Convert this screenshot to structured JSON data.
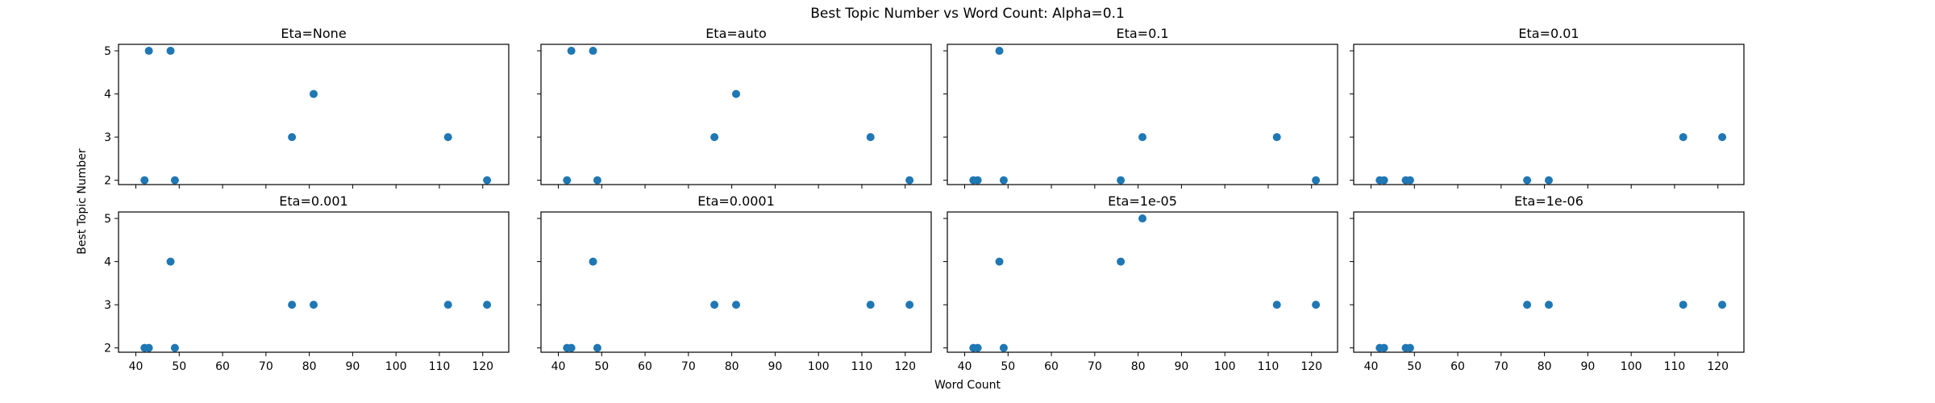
{
  "figure": {
    "title": "Best Topic Number vs Word Count: Alpha=0.1",
    "xlabel": "Word Count",
    "ylabel": "Best Topic Number",
    "marker_color": "#1f77b4"
  },
  "chart_data": {
    "type": "scatter",
    "shared_x": true,
    "shared_y": true,
    "xlim": [
      36,
      126
    ],
    "ylim": [
      1.9,
      5.15
    ],
    "xticks": [
      "40",
      "50",
      "60",
      "70",
      "80",
      "90",
      "100",
      "110",
      "120"
    ],
    "yticks": [
      "2",
      "3",
      "4",
      "5"
    ],
    "panels": [
      {
        "title": "Eta=None",
        "x": [
          42,
          43,
          48,
          49,
          76,
          81,
          112,
          121
        ],
        "y": [
          2,
          5,
          5,
          2,
          3,
          4,
          3,
          2
        ]
      },
      {
        "title": "Eta=auto",
        "x": [
          42,
          43,
          48,
          49,
          76,
          81,
          112,
          121
        ],
        "y": [
          2,
          5,
          5,
          2,
          3,
          4,
          3,
          2
        ]
      },
      {
        "title": "Eta=0.1",
        "x": [
          42,
          43,
          48,
          49,
          76,
          81,
          112,
          121
        ],
        "y": [
          2,
          2,
          5,
          2,
          2,
          3,
          3,
          2
        ]
      },
      {
        "title": "Eta=0.01",
        "x": [
          42,
          43,
          48,
          49,
          76,
          81,
          112,
          121
        ],
        "y": [
          2,
          2,
          2,
          2,
          2,
          2,
          3,
          3
        ]
      },
      {
        "title": "Eta=0.001",
        "x": [
          42,
          43,
          48,
          49,
          76,
          81,
          112,
          121
        ],
        "y": [
          2,
          2,
          4,
          2,
          3,
          3,
          3,
          3
        ]
      },
      {
        "title": "Eta=0.0001",
        "x": [
          42,
          43,
          48,
          49,
          76,
          81,
          112,
          121
        ],
        "y": [
          2,
          2,
          4,
          2,
          3,
          3,
          3,
          3
        ]
      },
      {
        "title": "Eta=1e-05",
        "x": [
          42,
          43,
          48,
          49,
          76,
          81,
          112,
          121
        ],
        "y": [
          2,
          2,
          4,
          2,
          4,
          5,
          3,
          3
        ]
      },
      {
        "title": "Eta=1e-06",
        "x": [
          42,
          43,
          48,
          49,
          76,
          81,
          112,
          121
        ],
        "y": [
          2,
          2,
          2,
          2,
          3,
          3,
          3,
          3
        ]
      }
    ]
  }
}
